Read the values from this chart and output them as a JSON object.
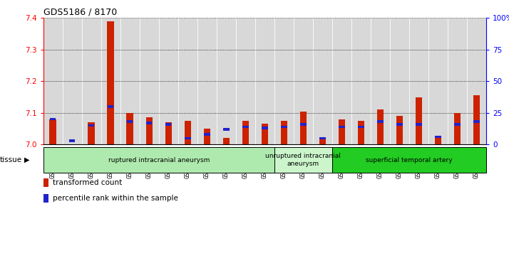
{
  "title": "GDS5186 / 8170",
  "samples": [
    "GSM1306885",
    "GSM1306886",
    "GSM1306887",
    "GSM1306888",
    "GSM1306889",
    "GSM1306890",
    "GSM1306891",
    "GSM1306892",
    "GSM1306893",
    "GSM1306894",
    "GSM1306895",
    "GSM1306896",
    "GSM1306897",
    "GSM1306898",
    "GSM1306899",
    "GSM1306900",
    "GSM1306901",
    "GSM1306902",
    "GSM1306903",
    "GSM1306904",
    "GSM1306905",
    "GSM1306906",
    "GSM1306907"
  ],
  "red_values": [
    7.08,
    7.0,
    7.07,
    7.39,
    7.1,
    7.085,
    7.07,
    7.075,
    7.05,
    7.02,
    7.075,
    7.065,
    7.075,
    7.105,
    7.02,
    7.08,
    7.075,
    7.11,
    7.09,
    7.15,
    7.02,
    7.1,
    7.155
  ],
  "blue_values_pct": [
    20,
    3,
    15,
    30,
    18,
    17,
    16,
    5,
    8,
    12,
    14,
    13,
    14,
    16,
    5,
    14,
    14,
    18,
    16,
    16,
    6,
    16,
    18
  ],
  "ylim": [
    7.0,
    7.4
  ],
  "yticks": [
    7.0,
    7.1,
    7.2,
    7.3,
    7.4
  ],
  "right_ytick_labels": [
    "0",
    "25",
    "50",
    "75",
    "100%"
  ],
  "right_ytick_pcts": [
    0,
    25,
    50,
    75,
    100
  ],
  "groups": [
    {
      "label": "ruptured intracranial aneurysm",
      "start": 0,
      "end": 12,
      "color": "#aeeaae"
    },
    {
      "label": "unruptured intracranial\naneurysm",
      "start": 12,
      "end": 15,
      "color": "#ccf5cc"
    },
    {
      "label": "superficial temporal artery",
      "start": 15,
      "end": 23,
      "color": "#22cc22"
    }
  ],
  "bar_color_red": "#cc2200",
  "bar_color_blue": "#2222cc",
  "bar_width": 0.35,
  "cell_color": "#d8d8d8",
  "plot_bg": "#ffffff",
  "legend_red_label": "transformed count",
  "legend_blue_label": "percentile rank within the sample"
}
